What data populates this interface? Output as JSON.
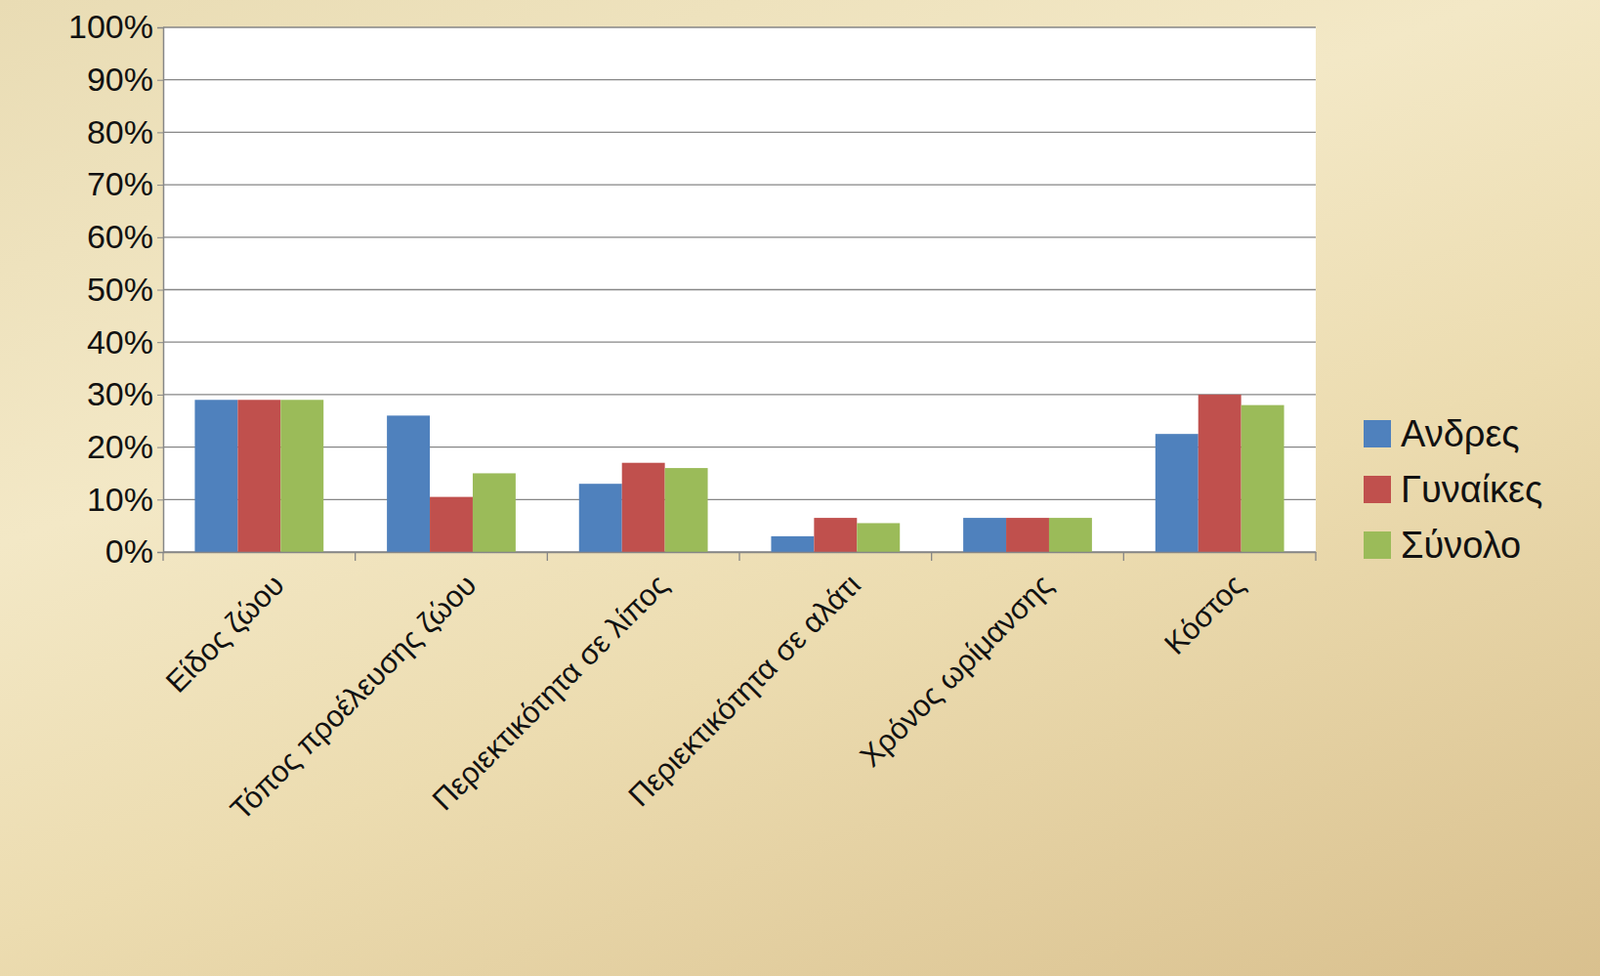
{
  "chart_data": {
    "type": "bar",
    "categories": [
      "Είδος ζώου",
      "Τόπος προέλευσης ζώου",
      "Περιεκτικότητα σε λίπος",
      "Περιεκτικότητα σε αλάτι",
      "Χρόνος ωρίμανσης",
      "Κόστος"
    ],
    "series": [
      {
        "name": "Ανδρες",
        "color": "#4f81bd",
        "values": [
          29,
          26,
          13,
          3,
          6.5,
          22.5
        ]
      },
      {
        "name": "Γυναίκες",
        "color": "#c0504d",
        "values": [
          29,
          10.5,
          17,
          6.5,
          6.5,
          30
        ]
      },
      {
        "name": "Σύνολο",
        "color": "#9bbb59",
        "values": [
          29,
          15,
          16,
          5.5,
          6.5,
          28
        ]
      }
    ],
    "ylim": [
      0,
      100
    ],
    "yticks": [
      {
        "value": 0,
        "label": "0%"
      },
      {
        "value": 10,
        "label": "10%"
      },
      {
        "value": 20,
        "label": "20%"
      },
      {
        "value": 30,
        "label": "30%"
      },
      {
        "value": 40,
        "label": "40%"
      },
      {
        "value": 50,
        "label": "50%"
      },
      {
        "value": 60,
        "label": "60%"
      },
      {
        "value": 70,
        "label": "70%"
      },
      {
        "value": 80,
        "label": "80%"
      },
      {
        "value": 90,
        "label": "90%"
      },
      {
        "value": 100,
        "label": "100%"
      }
    ],
    "grid": true,
    "legend": "right"
  }
}
